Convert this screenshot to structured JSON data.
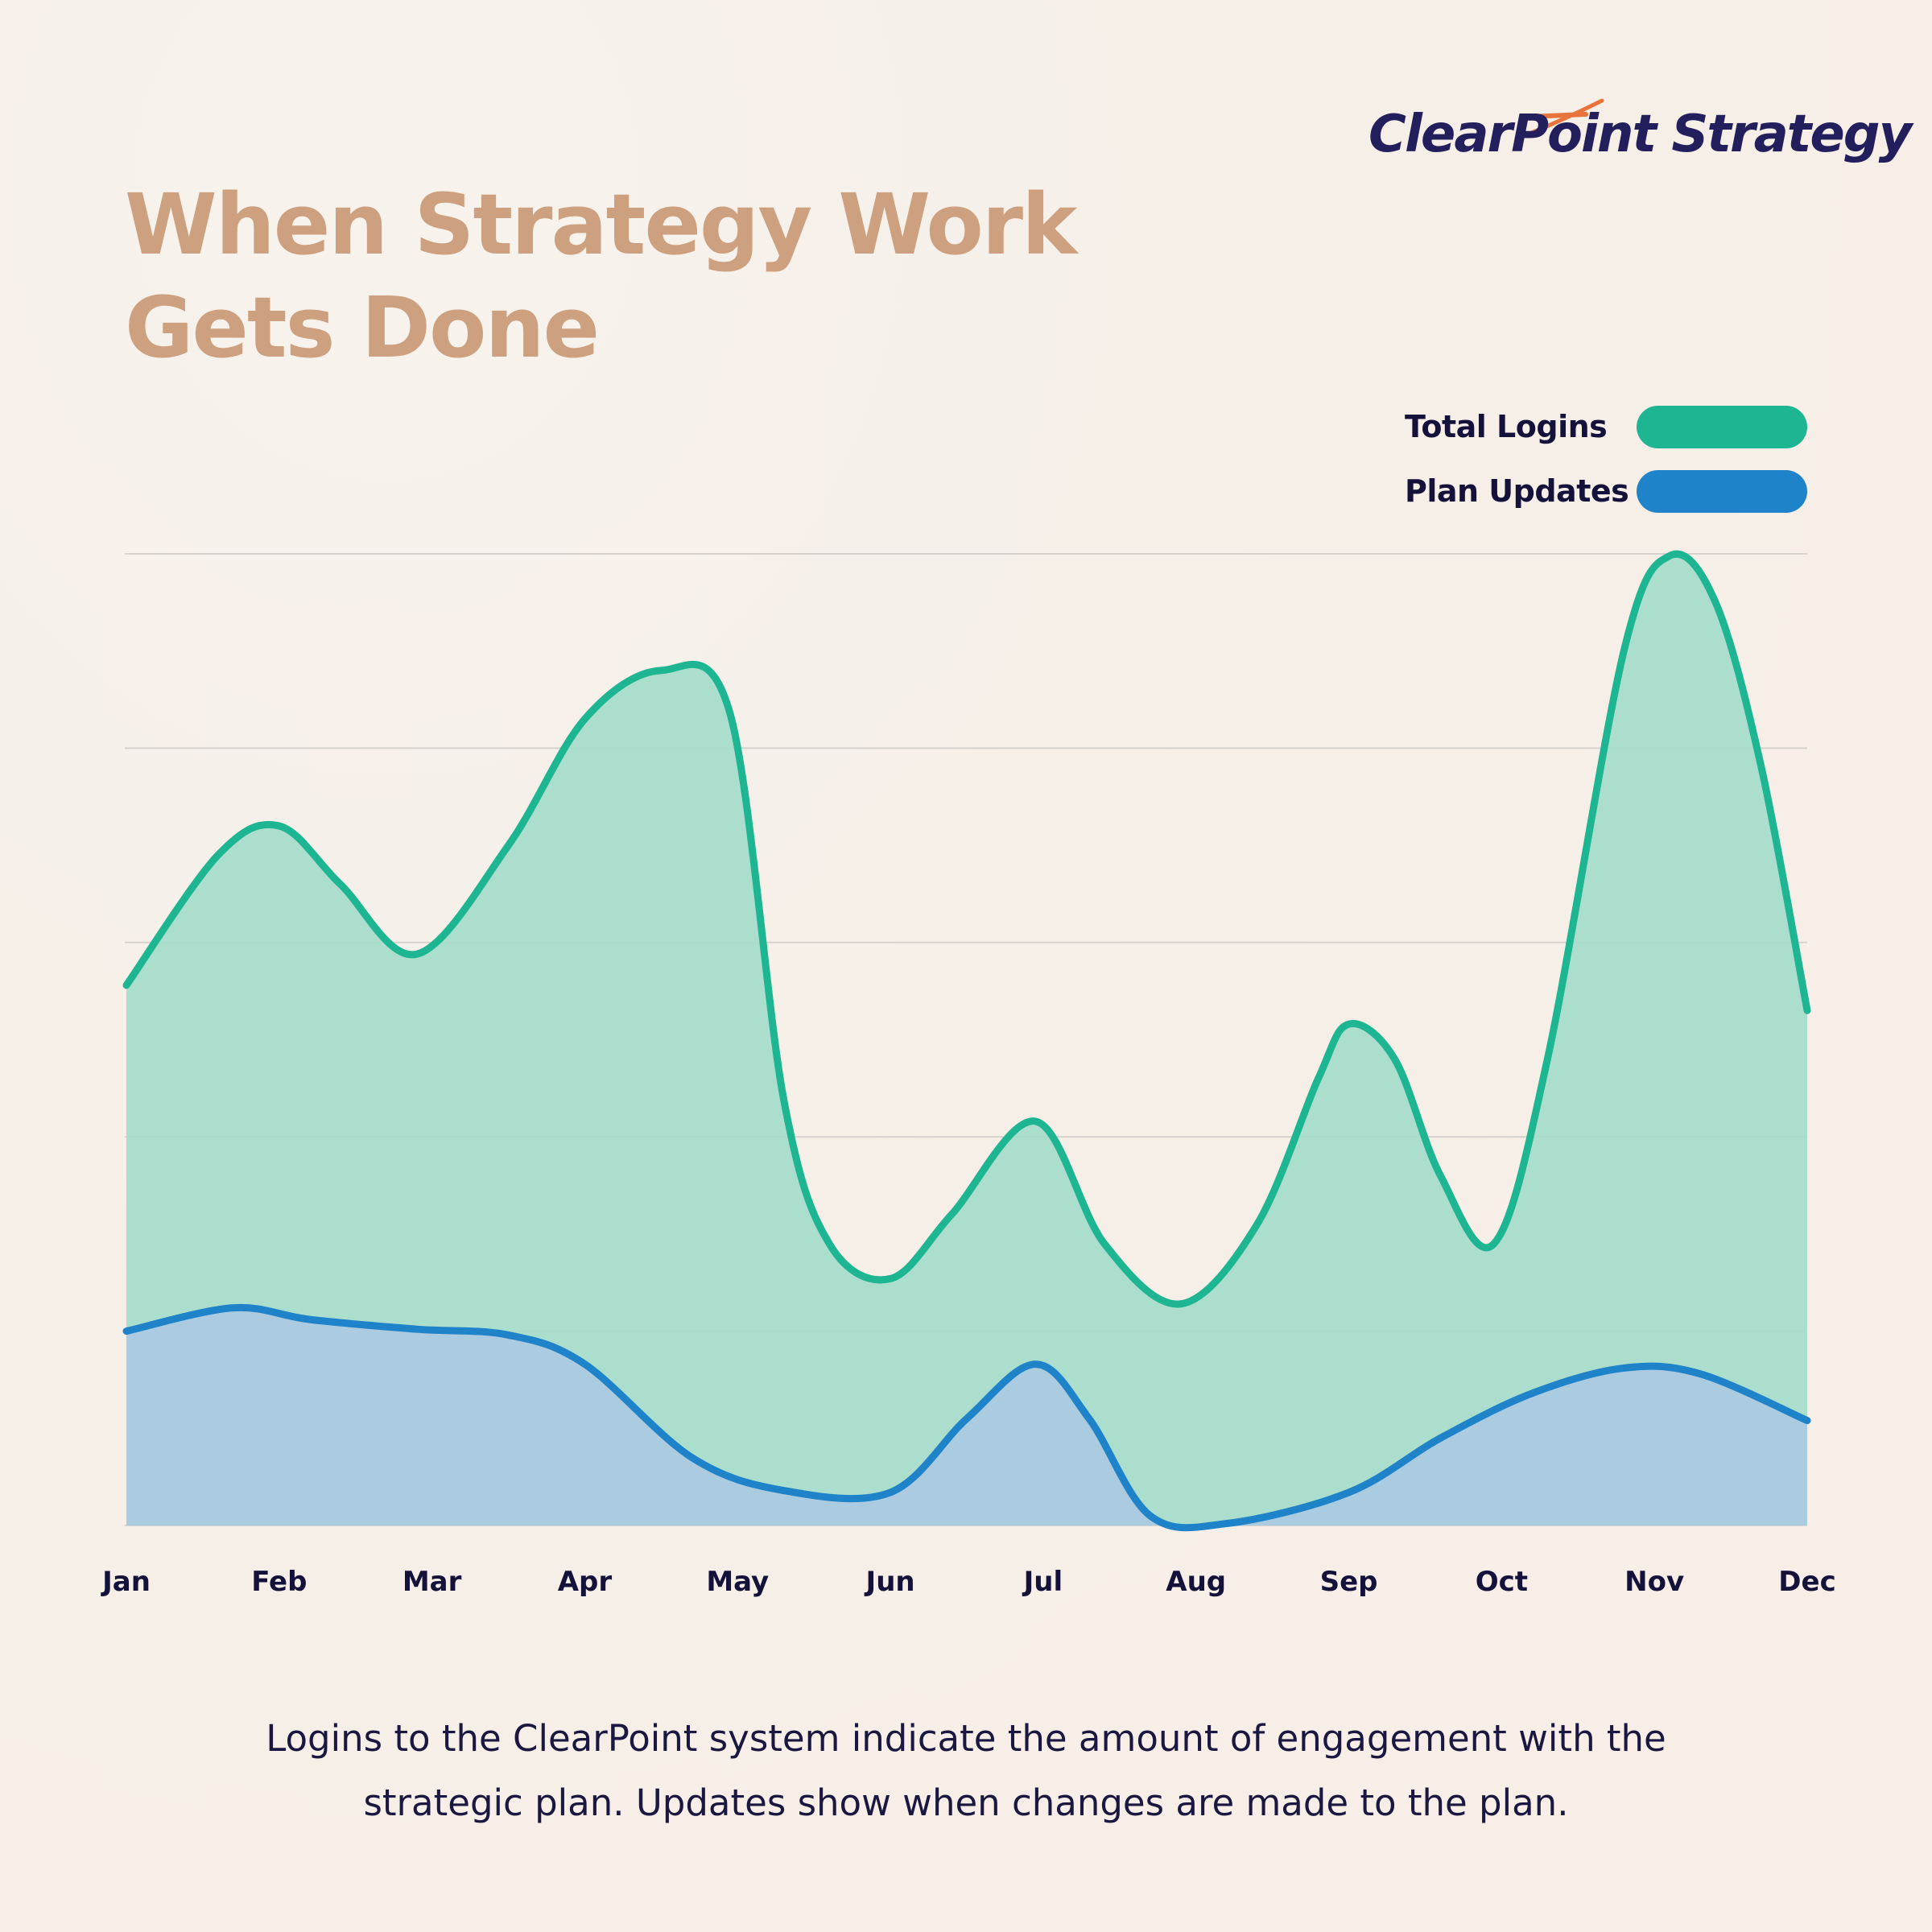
{
  "logo": {
    "text": "ClearPoint Strategy",
    "accent_color": "#e8743b",
    "text_color": "#221f5c"
  },
  "title": {
    "line1": "When Strategy Work",
    "line2": "Gets Done",
    "color": "#cda17f"
  },
  "legend": [
    {
      "label": "Total Logins",
      "color": "#1db592"
    },
    {
      "label": "Plan Updates",
      "color": "#1f83c9"
    }
  ],
  "caption": {
    "line1": "Logins to the ClearPoint system indicate the amount of engagement with the",
    "line2": "strategic plan. Updates show when changes are made to the plan."
  },
  "chart_data": {
    "type": "area",
    "title": "When Strategy Work Gets Done",
    "xlabel": "",
    "ylabel": "",
    "categories": [
      "Jan",
      "Feb",
      "Mar",
      "Apr",
      "May",
      "Jun",
      "Jul",
      "Aug",
      "Sep",
      "Oct",
      "Nov",
      "Dec"
    ],
    "ylim": [
      0,
      5
    ],
    "y_ticks_labeled": false,
    "grid": true,
    "gridlines": 5,
    "legend_position": "top-right",
    "note": "No y-axis values shown; values are relative units where each gridline = 1 unit. Curve vertices are at fractional month positions (0 = Jan, 11 = Dec).",
    "series": [
      {
        "name": "Total Logins",
        "color": "#1db592",
        "fill": "#a8dccb",
        "points": [
          [
            0.0,
            2.78
          ],
          [
            0.6,
            3.45
          ],
          [
            1.0,
            3.6
          ],
          [
            1.4,
            3.3
          ],
          [
            1.9,
            2.94
          ],
          [
            2.5,
            3.5
          ],
          [
            3.0,
            4.15
          ],
          [
            3.5,
            4.4
          ],
          [
            3.95,
            4.18
          ],
          [
            4.3,
            2.2
          ],
          [
            4.6,
            1.45
          ],
          [
            5.0,
            1.27
          ],
          [
            5.4,
            1.6
          ],
          [
            5.95,
            2.08
          ],
          [
            6.4,
            1.45
          ],
          [
            6.9,
            1.14
          ],
          [
            7.4,
            1.55
          ],
          [
            7.8,
            2.3
          ],
          [
            8.0,
            2.58
          ],
          [
            8.3,
            2.4
          ],
          [
            8.6,
            1.8
          ],
          [
            8.95,
            1.45
          ],
          [
            9.3,
            2.4
          ],
          [
            9.8,
            4.5
          ],
          [
            10.1,
            4.99
          ],
          [
            10.4,
            4.75
          ],
          [
            10.7,
            3.9
          ],
          [
            11.0,
            2.65
          ]
        ]
      },
      {
        "name": "Plan Updates",
        "color": "#1f83c9",
        "fill": "#abc9e0",
        "points": [
          [
            0.0,
            1.0
          ],
          [
            0.7,
            1.12
          ],
          [
            1.2,
            1.06
          ],
          [
            1.9,
            1.01
          ],
          [
            2.5,
            0.98
          ],
          [
            3.0,
            0.83
          ],
          [
            3.7,
            0.35
          ],
          [
            4.3,
            0.18
          ],
          [
            5.0,
            0.17
          ],
          [
            5.5,
            0.55
          ],
          [
            5.95,
            0.83
          ],
          [
            6.3,
            0.55
          ],
          [
            6.7,
            0.05
          ],
          [
            7.2,
            0.01
          ],
          [
            8.0,
            0.17
          ],
          [
            8.6,
            0.45
          ],
          [
            9.2,
            0.68
          ],
          [
            9.8,
            0.81
          ],
          [
            10.3,
            0.78
          ],
          [
            11.0,
            0.54
          ]
        ]
      }
    ]
  }
}
